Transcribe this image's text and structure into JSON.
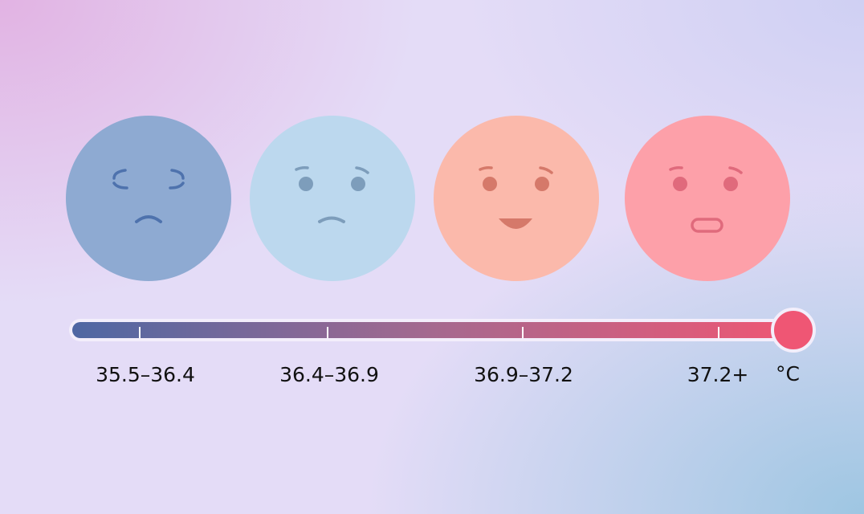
{
  "scale": {
    "ranges": [
      "35.5–36.4",
      "36.4–36.9",
      "36.9–37.2",
      "37.2+"
    ],
    "unit": "°C"
  }
}
